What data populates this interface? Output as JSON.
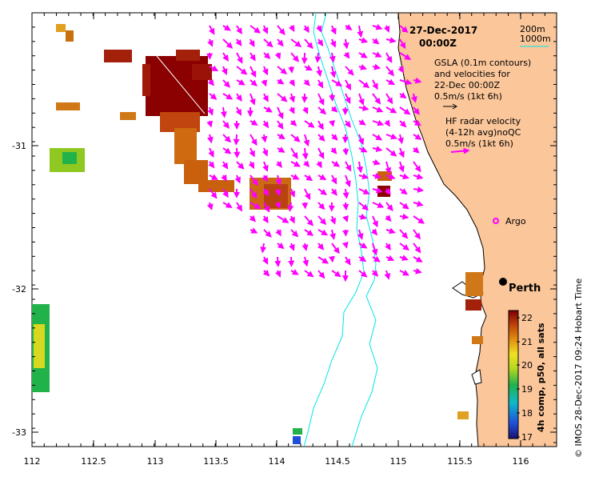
{
  "map": {
    "date_label": "27-Dec-2017",
    "time_label": "00:00Z",
    "contour_legend": {
      "a": "200m",
      "b": "1000m"
    },
    "gsla_lines": [
      "GSLA (0.1m contours)",
      "and velocities for",
      "22-Dec 00:00Z",
      "0.5m/s (1kt 6h)"
    ],
    "hf_lines": [
      "HF radar velocity",
      "(4-12h avg)noQC",
      "0.5m/s (1kt 6h)"
    ],
    "places": {
      "argo": "Argo",
      "perth": "Perth"
    },
    "x_ticks": [
      "112",
      "112.5",
      "113",
      "113.5",
      "114",
      "114.5",
      "115",
      "115.5",
      "116"
    ],
    "y_ticks": [
      "-31",
      "-32",
      "-33"
    ],
    "colorbar": {
      "label": "4h comp, p50, all sats",
      "ticks": [
        "22",
        "21",
        "20",
        "19",
        "18",
        "17"
      ],
      "min": 17,
      "max": 22.4
    },
    "credit": "© IMOS 28-Dec-2017 09:24 Hobart Time",
    "colors": {
      "land": "#fbc69a",
      "contour": "#00e5e5",
      "hf_arrow": "#ff00ff",
      "accent": "#8b0000"
    }
  }
}
